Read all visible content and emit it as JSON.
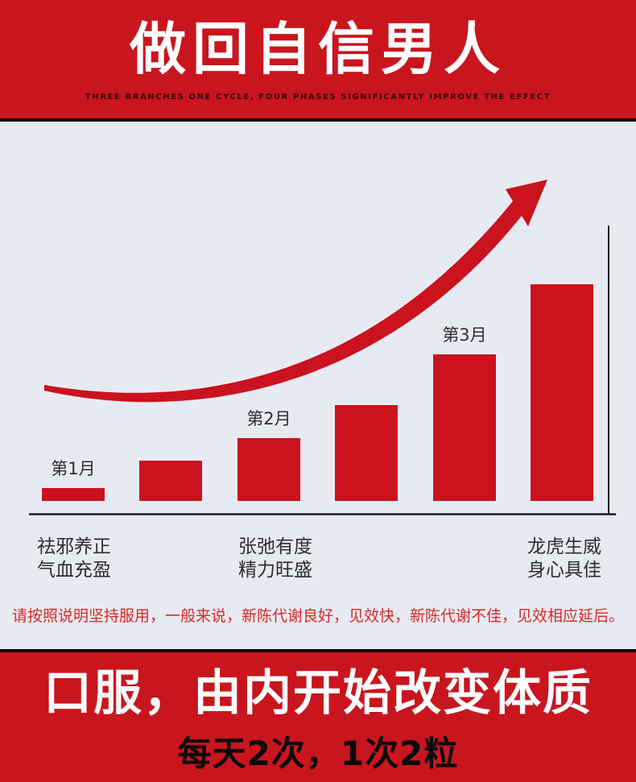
{
  "colors": {
    "banner_red": "#c9151e",
    "bar_red": "#cb121f",
    "bg_gray": "#e8eaf2",
    "note_red": "#d42a28",
    "divider_black": "#050505",
    "axis_black": "#1c1c1c",
    "label_dark": "#2e2e2e",
    "title_white": "#ffffff"
  },
  "header": {
    "title": "做回自信男人",
    "subtitle": "THREE BRANCHES ONE CYCLE, FOUR PHASES SIGNIFICANTLY IMPROVE THE EFFECT"
  },
  "chart_data": {
    "type": "bar",
    "title": "",
    "categories": [
      "第1月",
      "",
      "第2月",
      "",
      "第3月",
      ""
    ],
    "values": [
      16,
      50,
      78,
      119,
      182,
      269
    ],
    "value_unit": "relative bar height in px (no numeric axis shown)",
    "series": [
      {
        "name": "effect-growth-over-months",
        "values": [
          16,
          50,
          78,
          119,
          182,
          269
        ]
      }
    ],
    "visible_bar_labels": [
      "第1月",
      "第2月",
      "第3月"
    ],
    "axes": {
      "bottom_axis": true,
      "right_axis": true,
      "numeric_ticks": false,
      "grid": false
    },
    "annotations": [
      "upward curved trend arrow above bars"
    ]
  },
  "features": [
    {
      "line1": "祛邪养正",
      "line2": "气血充盈"
    },
    {
      "line1": "张弛有度",
      "line2": "精力旺盛"
    },
    {
      "line1": "龙虎生威",
      "line2": "身心具佳"
    }
  ],
  "note": "请按照说明坚持服用，一般来说，新陈代谢良好，见效快，新陈代谢不佳，见效相应延后。",
  "footer": {
    "line1": "口服，由内开始改变体质",
    "line2": "每天2次，1次2粒"
  }
}
